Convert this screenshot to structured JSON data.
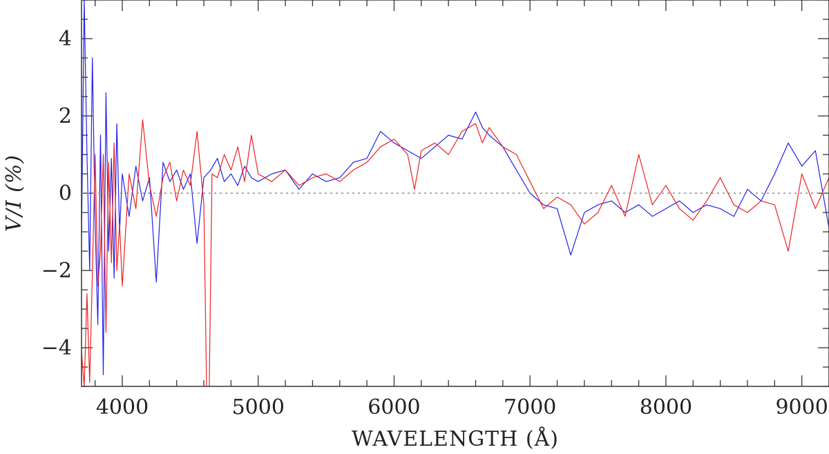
{
  "chart_data": {
    "type": "line",
    "xlabel": "WAVELENGTH (Å)",
    "ylabel": "V/I (%)",
    "xlim": [
      3700,
      9200
    ],
    "ylim": [
      -5,
      5
    ],
    "xticks_major": [
      4000,
      5000,
      6000,
      7000,
      8000,
      9000
    ],
    "xtick_labels": [
      "4000",
      "5000",
      "6000",
      "7000",
      "8000",
      "9000"
    ],
    "yticks_major": [
      -4,
      -2,
      0,
      2,
      4
    ],
    "ytick_labels": [
      "−4",
      "−2",
      "0",
      "2",
      "4"
    ],
    "grid": false,
    "legend": "none",
    "reference_line": {
      "y": 0,
      "style": "dotted",
      "color": "#888888"
    },
    "series": [
      {
        "color": "#2020ee",
        "x": [
          3700,
          3720,
          3740,
          3760,
          3780,
          3800,
          3820,
          3840,
          3860,
          3880,
          3900,
          3920,
          3940,
          3960,
          3980,
          4000,
          4050,
          4100,
          4150,
          4200,
          4250,
          4300,
          4350,
          4400,
          4450,
          4500,
          4550,
          4600,
          4650,
          4700,
          4750,
          4800,
          4850,
          4900,
          4950,
          5000,
          5100,
          5200,
          5300,
          5400,
          5500,
          5600,
          5700,
          5800,
          5900,
          6000,
          6100,
          6200,
          6300,
          6400,
          6500,
          6600,
          6650,
          6700,
          6800,
          6900,
          7000,
          7100,
          7200,
          7300,
          7400,
          7500,
          7600,
          7700,
          7800,
          7900,
          8000,
          8100,
          8200,
          8300,
          8400,
          8500,
          8600,
          8700,
          8800,
          8900,
          9000,
          9100,
          9200
        ],
        "values": [
          -1.2,
          5.0,
          1.0,
          -2.0,
          3.5,
          -0.8,
          -3.4,
          1.5,
          -4.7,
          2.6,
          -1.5,
          0.9,
          -2.2,
          1.8,
          -1.0,
          0.5,
          -0.6,
          0.7,
          -0.2,
          0.4,
          -2.3,
          0.8,
          0.3,
          0.6,
          0.1,
          0.5,
          -1.3,
          0.4,
          0.6,
          0.9,
          0.3,
          0.5,
          0.2,
          0.7,
          0.4,
          0.3,
          0.5,
          0.6,
          0.1,
          0.5,
          0.3,
          0.4,
          0.8,
          0.9,
          1.6,
          1.3,
          1.1,
          0.9,
          1.2,
          1.5,
          1.4,
          2.1,
          1.7,
          1.5,
          1.2,
          0.6,
          0.0,
          -0.3,
          -0.4,
          -1.6,
          -0.5,
          -0.3,
          -0.2,
          -0.5,
          -0.3,
          -0.6,
          -0.4,
          -0.2,
          -0.5,
          -0.3,
          -0.4,
          -0.6,
          0.1,
          -0.2,
          0.5,
          1.3,
          0.7,
          1.1,
          -0.9
        ]
      },
      {
        "color": "#ee2020",
        "x": [
          3700,
          3720,
          3740,
          3760,
          3780,
          3800,
          3820,
          3840,
          3860,
          3880,
          3900,
          3920,
          3940,
          3960,
          3980,
          4000,
          4050,
          4100,
          4150,
          4200,
          4250,
          4300,
          4350,
          4400,
          4450,
          4500,
          4550,
          4600,
          4620,
          4640,
          4660,
          4700,
          4750,
          4800,
          4850,
          4900,
          4950,
          5000,
          5100,
          5200,
          5300,
          5400,
          5500,
          5600,
          5700,
          5800,
          5900,
          6000,
          6100,
          6150,
          6200,
          6300,
          6400,
          6500,
          6600,
          6650,
          6700,
          6800,
          6900,
          7000,
          7100,
          7200,
          7300,
          7400,
          7500,
          7600,
          7700,
          7800,
          7900,
          8000,
          8100,
          8200,
          8300,
          8400,
          8500,
          8600,
          8700,
          8800,
          8900,
          9000,
          9100,
          9200
        ],
        "values": [
          -4.1,
          -5.0,
          -2.6,
          -4.9,
          -2.1,
          1.0,
          -2.4,
          -1.5,
          1.0,
          -3.6,
          0.8,
          -1.8,
          1.3,
          -2.0,
          -0.8,
          -2.4,
          0.5,
          -0.4,
          1.9,
          0.2,
          -0.6,
          0.4,
          0.8,
          -0.2,
          0.6,
          0.2,
          1.6,
          -0.3,
          -5.0,
          -5.0,
          0.5,
          0.4,
          1.0,
          0.6,
          1.2,
          0.3,
          1.5,
          0.5,
          0.3,
          0.6,
          0.2,
          0.4,
          0.5,
          0.3,
          0.6,
          0.8,
          1.2,
          1.4,
          1.0,
          0.1,
          1.1,
          1.3,
          1.0,
          1.6,
          1.8,
          1.3,
          1.7,
          1.2,
          1.0,
          0.3,
          -0.4,
          -0.1,
          -0.3,
          -0.8,
          -0.5,
          0.2,
          -0.6,
          1.0,
          -0.3,
          0.2,
          -0.4,
          -0.7,
          -0.2,
          0.4,
          -0.3,
          -0.5,
          -0.2,
          -0.3,
          -1.5,
          0.5,
          -0.4,
          0.4
        ]
      }
    ]
  }
}
